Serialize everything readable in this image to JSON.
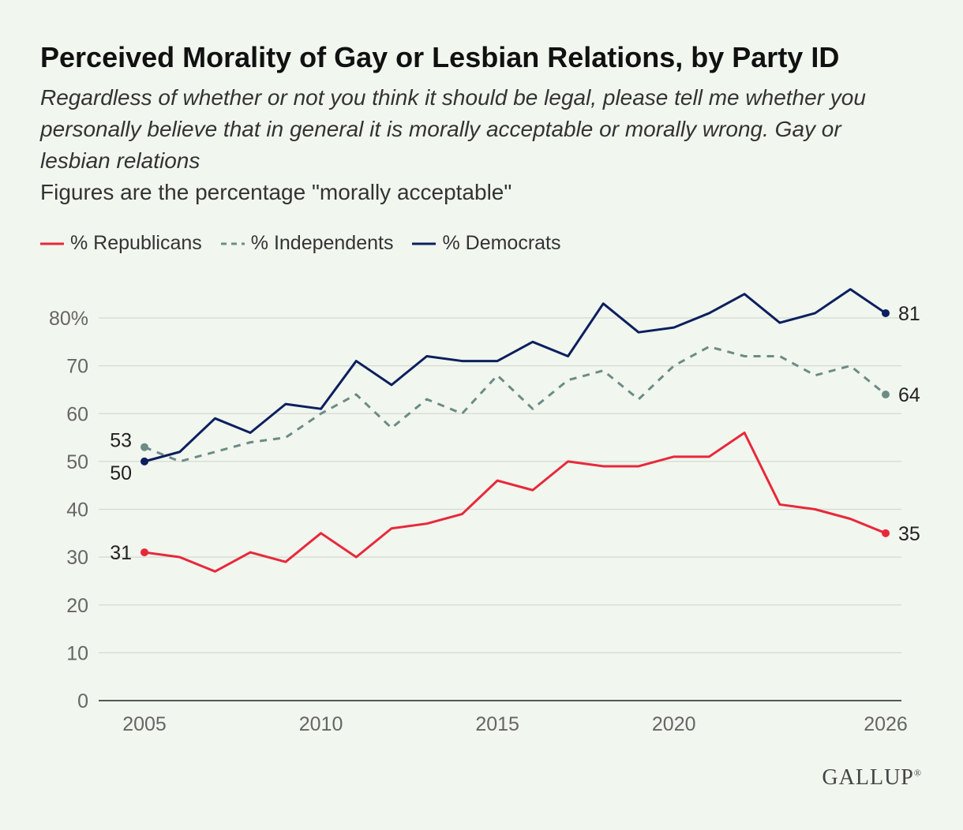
{
  "header": {
    "title": "Perceived Morality of Gay or Lesbian Relations, by Party ID",
    "subtitle": "Regardless of whether or not you think it should be legal, please tell me whether you personally believe that in general it is morally acceptable or morally wrong. Gay or lesbian relations",
    "note": "Figures are the percentage \"morally acceptable\""
  },
  "branding": {
    "logo_text": "GALLUP",
    "logo_mark": "®"
  },
  "chart_data": {
    "type": "line",
    "x": [
      2005,
      2006,
      2007,
      2008,
      2009,
      2010,
      2011,
      2012,
      2013,
      2014,
      2015,
      2016,
      2017,
      2018,
      2019,
      2020,
      2021,
      2022,
      2023,
      2024,
      2025,
      2026
    ],
    "series": [
      {
        "name": "% Republicans",
        "color": "#e8283a",
        "dash": false,
        "values": [
          31,
          30,
          27,
          31,
          29,
          35,
          30,
          36,
          37,
          39,
          46,
          44,
          50,
          49,
          49,
          51,
          51,
          56,
          41,
          40,
          38,
          35
        ],
        "start_label": "31",
        "end_label": "35"
      },
      {
        "name": "% Independents",
        "color": "#6c8c85",
        "dash": true,
        "values": [
          53,
          50,
          52,
          54,
          55,
          60,
          64,
          57,
          63,
          60,
          68,
          61,
          67,
          69,
          63,
          70,
          74,
          72,
          72,
          68,
          70,
          64
        ],
        "start_label": "53",
        "end_label": "64"
      },
      {
        "name": "% Democrats",
        "color": "#0c1f5e",
        "dash": false,
        "values": [
          50,
          52,
          59,
          56,
          62,
          61,
          71,
          66,
          72,
          71,
          71,
          75,
          72,
          83,
          77,
          78,
          81,
          85,
          79,
          81,
          86,
          81
        ],
        "start_label": "50",
        "end_label": "81"
      }
    ],
    "x_ticks": [
      "2005",
      "2010",
      "2015",
      "2020",
      "2026"
    ],
    "y_ticks": [
      "0",
      "10",
      "20",
      "30",
      "40",
      "50",
      "60",
      "70",
      "80%"
    ],
    "ylim": [
      0,
      80
    ],
    "xlim": [
      2005,
      2026
    ],
    "grid": true,
    "legend_position": "top-left"
  }
}
